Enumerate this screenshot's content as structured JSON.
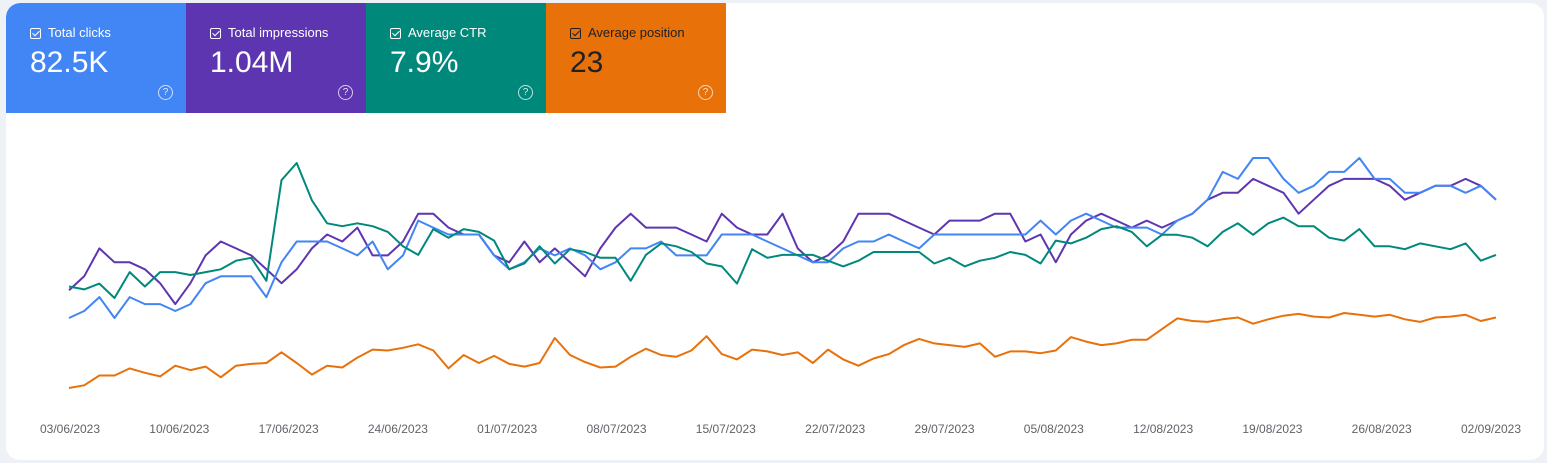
{
  "metrics": [
    {
      "label": "Total clicks",
      "value": "82.5K",
      "color": "#4285f4",
      "checked": true,
      "help": "?"
    },
    {
      "label": "Total impressions",
      "value": "1.04M",
      "color": "#5e35b1",
      "checked": true,
      "help": "?"
    },
    {
      "label": "Average CTR",
      "value": "7.9%",
      "color": "#00897b",
      "checked": true,
      "help": "?"
    },
    {
      "label": "Average position",
      "value": "23",
      "color": "#e8710a",
      "checked": true,
      "help": "?"
    }
  ],
  "chart_data": {
    "type": "line",
    "x_tick_labels": [
      "03/06/2023",
      "10/06/2023",
      "17/06/2023",
      "24/06/2023",
      "01/07/2023",
      "08/07/2023",
      "15/07/2023",
      "22/07/2023",
      "29/07/2023",
      "05/08/2023",
      "12/08/2023",
      "19/08/2023",
      "26/08/2023",
      "02/09/2023"
    ],
    "x_range": [
      "03/06/2023",
      "02/09/2023"
    ],
    "y_axis_labels_visible": false,
    "grid": false,
    "legend": "metric cards at top-left",
    "series": [
      {
        "name": "Total impressions",
        "color": "#5e35b1",
        "values": [
          62,
          64,
          68,
          66,
          66,
          65,
          63,
          60,
          63,
          67,
          69,
          68,
          67,
          65,
          63,
          65,
          68,
          70,
          69,
          71,
          67,
          67,
          69,
          73,
          73,
          71,
          70,
          70,
          67,
          66,
          69,
          66,
          68,
          66,
          64,
          68,
          71,
          73,
          71,
          71,
          71,
          70,
          69,
          73,
          71,
          70,
          70,
          73,
          68,
          66,
          67,
          69,
          73,
          73,
          73,
          72,
          71,
          70,
          72,
          72,
          72,
          73,
          73,
          69,
          70,
          66,
          70,
          72,
          73,
          72,
          71,
          72,
          71,
          72,
          73,
          75,
          76,
          76,
          78,
          77,
          76,
          73,
          75,
          77,
          78,
          78,
          78,
          77,
          75,
          76,
          77,
          77,
          78,
          77,
          75
        ]
      },
      {
        "name": "Total clicks",
        "color": "#4285f4",
        "values": [
          58,
          59,
          61,
          58,
          61,
          60,
          60,
          59,
          60,
          63,
          64,
          64,
          64,
          61,
          66,
          69,
          69,
          69,
          68,
          67,
          69,
          65,
          67,
          72,
          71,
          70,
          70,
          70,
          67,
          65,
          66,
          68,
          67,
          68,
          67,
          65,
          66,
          68,
          68,
          69,
          67,
          67,
          67,
          70,
          70,
          70,
          69,
          68,
          67,
          66,
          66,
          68,
          69,
          69,
          70,
          69,
          68,
          70,
          70,
          70,
          70,
          70,
          70,
          70,
          72,
          70,
          72,
          73,
          72,
          71,
          71,
          71,
          70,
          72,
          73,
          75,
          79,
          78,
          81,
          81,
          78,
          76,
          77,
          79,
          79,
          81,
          78,
          78,
          76,
          76,
          77,
          77,
          76,
          77,
          75
        ]
      },
      {
        "name": "Average CTR",
        "color": "#00897b",
        "values": [
          8.2,
          8.1,
          8.3,
          7.8,
          8.7,
          8.2,
          8.7,
          8.7,
          8.6,
          8.7,
          8.8,
          9.1,
          9.2,
          8.4,
          11.9,
          12.5,
          11.2,
          10.4,
          10.3,
          10.4,
          10.3,
          10.1,
          9.6,
          9.3,
          10.2,
          9.9,
          10.2,
          10.1,
          9.8,
          8.8,
          9.0,
          9.6,
          9.0,
          9.5,
          9.4,
          9.2,
          9.2,
          8.4,
          9.3,
          9.7,
          9.6,
          9.4,
          9.0,
          8.9,
          8.3,
          9.5,
          9.2,
          9.3,
          9.3,
          9.3,
          9.1,
          8.9,
          9.1,
          9.4,
          9.4,
          9.4,
          9.4,
          9.0,
          9.2,
          8.9,
          9.1,
          9.2,
          9.4,
          9.3,
          9.0,
          9.8,
          9.7,
          9.9,
          10.2,
          10.3,
          10.1,
          9.6,
          10.0,
          10.0,
          9.9,
          9.6,
          10.1,
          10.4,
          10.0,
          10.4,
          10.6,
          10.3,
          10.3,
          9.9,
          9.8,
          10.2,
          9.6,
          9.6,
          9.5,
          9.7,
          9.6,
          9.5,
          9.7,
          9.1,
          9.3
        ]
      },
      {
        "name": "Average position",
        "color": "#e8710a",
        "values": [
          24.8,
          24.5,
          23.4,
          23.4,
          22.6,
          23.1,
          23.5,
          22.3,
          22.8,
          22.4,
          23.6,
          22.3,
          22.1,
          22.0,
          20.8,
          22.0,
          23.3,
          22.3,
          22.5,
          21.4,
          20.5,
          20.6,
          20.3,
          19.9,
          20.6,
          22.6,
          21.1,
          22.0,
          21.2,
          22.1,
          22.4,
          22.0,
          19.2,
          21.1,
          21.9,
          22.5,
          22.4,
          21.3,
          20.4,
          21.1,
          21.3,
          20.6,
          19.0,
          21.0,
          21.6,
          20.5,
          20.7,
          21.1,
          20.8,
          22.0,
          20.5,
          21.6,
          22.3,
          21.5,
          21.0,
          20.0,
          19.3,
          19.8,
          20.0,
          20.2,
          19.8,
          21.3,
          20.7,
          20.7,
          20.9,
          20.6,
          19.1,
          19.6,
          20.0,
          19.8,
          19.4,
          19.4,
          18.2,
          17.0,
          17.3,
          17.4,
          17.1,
          16.9,
          17.6,
          17.1,
          16.7,
          16.5,
          16.8,
          16.9,
          16.4,
          16.6,
          16.8,
          16.6,
          17.1,
          17.4,
          16.9,
          16.8,
          16.6,
          17.3,
          16.9
        ]
      }
    ]
  }
}
